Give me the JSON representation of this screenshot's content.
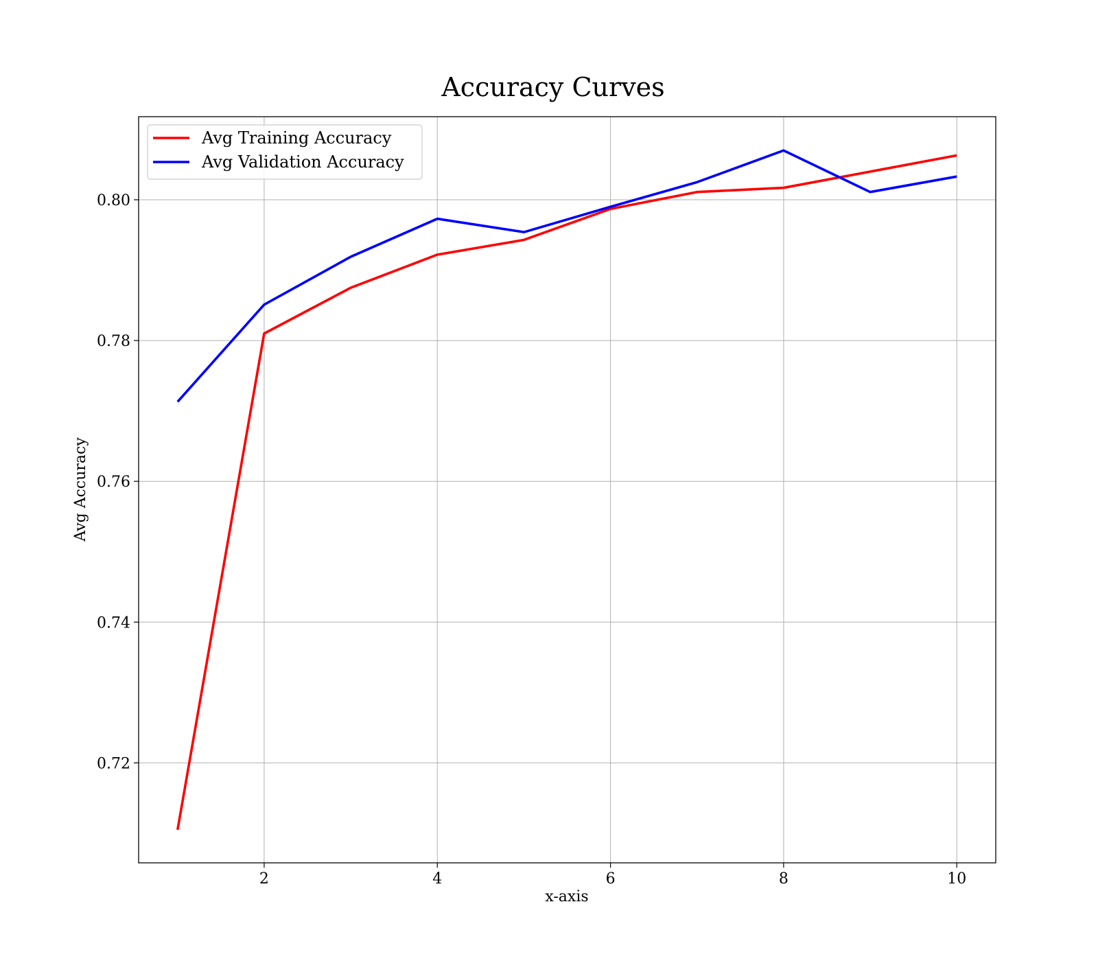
{
  "chart_data": {
    "type": "line",
    "title": "Accuracy Curves",
    "xlabel": "x-axis",
    "ylabel": "Avg Accuracy",
    "xlim": [
      0.55,
      10.45
    ],
    "ylim": [
      0.7058,
      0.8118
    ],
    "xticks": [
      2,
      4,
      6,
      8,
      10
    ],
    "xtick_labels": [
      "2",
      "4",
      "6",
      "8",
      "10"
    ],
    "yticks": [
      0.72,
      0.74,
      0.76,
      0.78,
      0.8
    ],
    "ytick_labels": [
      "0.72",
      "0.74",
      "0.76",
      "0.78",
      "0.80"
    ],
    "grid": true,
    "legend_position": "top-left",
    "x": [
      1,
      2,
      3,
      4,
      5,
      6,
      7,
      8,
      9,
      10
    ],
    "series": [
      {
        "name": "Avg Training Accuracy",
        "color": "#ff0000",
        "values": [
          0.7105,
          0.781,
          0.7875,
          0.7922,
          0.7943,
          0.7987,
          0.8011,
          0.8017,
          0.804,
          0.8063
        ]
      },
      {
        "name": "Avg Validation Accuracy",
        "color": "#0000ff",
        "values": [
          0.7713,
          0.7851,
          0.7919,
          0.7973,
          0.7954,
          0.799,
          0.8025,
          0.807,
          0.8011,
          0.8033
        ]
      }
    ]
  }
}
